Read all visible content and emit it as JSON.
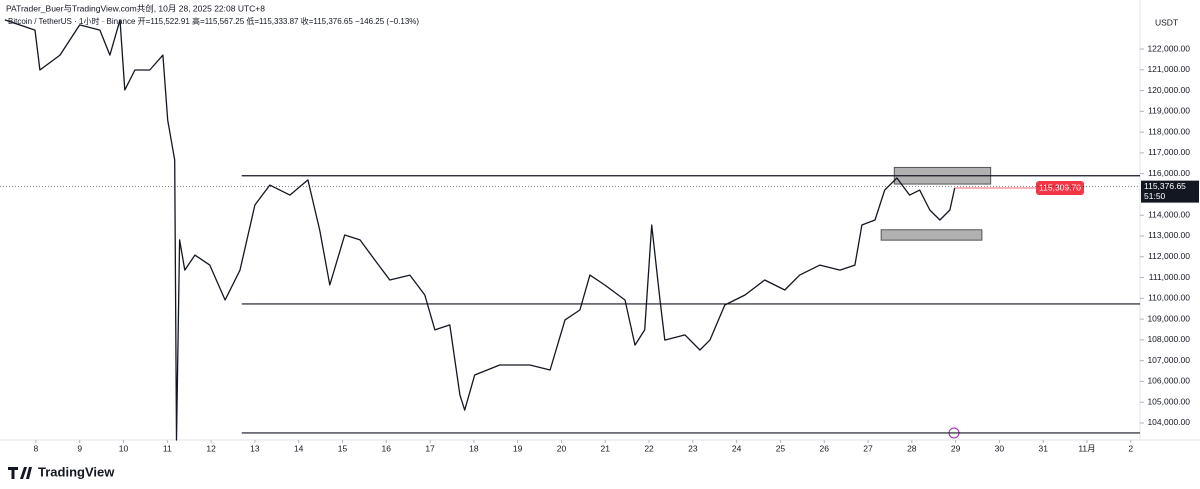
{
  "chart_data": {
    "type": "line",
    "title": "PATrader_Buer与TradingView.com共创, 10月 28, 2025 22:08 UTC+8",
    "legend_text": "Bitcoin / TetherUS · 1小时 · Binance  开=115,522.91  高=115,567.25  低=115,333.87  收=115,376.65  −146.25 (−0.13%)",
    "currency": "USDT",
    "brand": "TradingView",
    "color": "#131722",
    "x": [
      7.29,
      7.98,
      8.09,
      8.55,
      9.0,
      9.46,
      9.69,
      9.92,
      10.03,
      10.26,
      10.6,
      10.9,
      11.01,
      11.17,
      11.21,
      11.28,
      11.4,
      11.63,
      11.97,
      12.32,
      12.66,
      13.0,
      13.34,
      13.8,
      14.21,
      14.48,
      14.71,
      15.05,
      15.4,
      15.74,
      16.08,
      16.54,
      16.88,
      17.11,
      17.45,
      17.68,
      17.79,
      18.02,
      18.59,
      19.28,
      19.74,
      20.08,
      20.42,
      20.65,
      20.99,
      21.45,
      21.68,
      21.9,
      22.06,
      22.25,
      22.36,
      22.82,
      23.16,
      23.39,
      23.73,
      24.19,
      24.64,
      25.1,
      25.44,
      25.9,
      26.36,
      26.7,
      26.86,
      27.16,
      27.38,
      27.66,
      27.95,
      28.18,
      28.41,
      28.64,
      28.87,
      28.98
    ],
    "values": [
      123400,
      122910,
      120990,
      121710,
      123160,
      122910,
      121710,
      123400,
      120030,
      120990,
      120990,
      121710,
      118580,
      116660,
      103180,
      112810,
      111360,
      112080,
      111600,
      109920,
      111360,
      114490,
      115450,
      114970,
      115700,
      113290,
      110640,
      113050,
      112810,
      111840,
      110880,
      111120,
      110160,
      108480,
      108720,
      105350,
      104620,
      106310,
      106790,
      106790,
      106550,
      108960,
      109440,
      111120,
      110640,
      109920,
      107750,
      108480,
      113530,
      109920,
      107990,
      108240,
      107510,
      107990,
      109680,
      110160,
      110880,
      110400,
      111120,
      111600,
      111360,
      111600,
      113530,
      113770,
      115210,
      115790,
      114970,
      115210,
      114250,
      113770,
      114250,
      115310
    ],
    "xlim": [
      7.18,
      33.21
    ],
    "ylim": [
      103180,
      124360
    ],
    "xticks": [
      8,
      9,
      10,
      11,
      12,
      13,
      14,
      15,
      16,
      17,
      18,
      19,
      20,
      21,
      22,
      23,
      24,
      25,
      26,
      27,
      28,
      29,
      30,
      31,
      {
        "value": 32,
        "label": "11月"
      },
      {
        "value": 33,
        "label": "2"
      }
    ],
    "yticks": [
      {
        "value": 104000,
        "label": "104,000.00"
      },
      {
        "value": 105000,
        "label": "105,000.00"
      },
      {
        "value": 106000,
        "label": "106,000.00"
      },
      {
        "value": 107000,
        "label": "107,000.00"
      },
      {
        "value": 108000,
        "label": "108,000.00"
      },
      {
        "value": 109000,
        "label": "109,000.00"
      },
      {
        "value": 110000,
        "label": "110,000.00"
      },
      {
        "value": 111000,
        "label": "111,000.00"
      },
      {
        "value": 112000,
        "label": "112,000.00"
      },
      {
        "value": 113000,
        "label": "113,000.00"
      },
      {
        "value": 114000,
        "label": "114,000.00"
      },
      {
        "value": 116000,
        "label": "116,000.00"
      },
      {
        "value": 117000,
        "label": "117,000.00"
      },
      {
        "value": 118000,
        "label": "118,000.00"
      },
      {
        "value": 119000,
        "label": "119,000.00"
      },
      {
        "value": 120000,
        "label": "120,000.00"
      },
      {
        "value": 121000,
        "label": "121,000.00"
      },
      {
        "value": 122000,
        "label": "122,000.00"
      }
    ],
    "hlines": [
      115900,
      109730,
      103520
    ],
    "zones": [
      {
        "x": [
          27.6,
          29.8
        ],
        "top": 116300,
        "bottom": 115500
      },
      {
        "x": [
          27.3,
          29.6
        ],
        "top": 113300,
        "bottom": 112800
      }
    ],
    "alert": {
      "value": 115309.7,
      "label": "115,309.70"
    },
    "last_price": {
      "value": 115376.65,
      "label": "115,376.65",
      "countdown": "51:50"
    }
  }
}
